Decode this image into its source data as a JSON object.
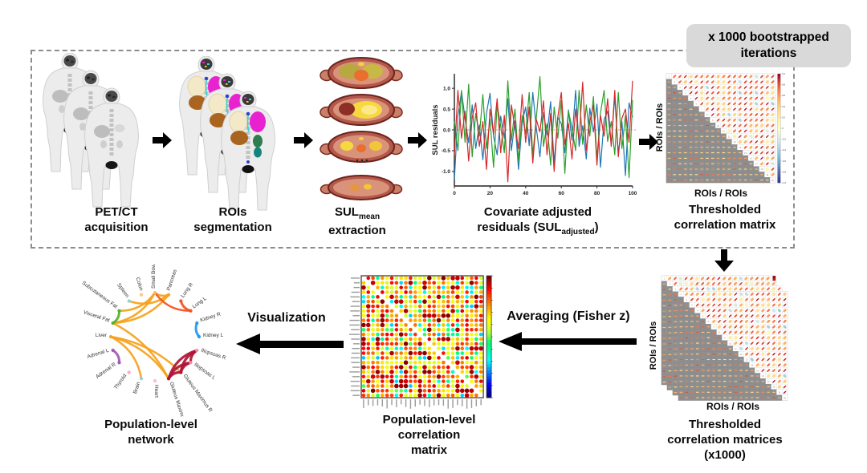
{
  "badge": {
    "text": "x 1000 bootstrapped iterations"
  },
  "steps": {
    "petct": {
      "line1": "PET/CT",
      "line2": "acquisition"
    },
    "rois": {
      "line1": "ROIs",
      "line2": "segmentation"
    },
    "sul": {
      "main": "SUL",
      "sub": "mean",
      "line2": "extraction"
    },
    "covariate": {
      "line1": "Covariate adjusted",
      "line2_pre": "residuals (SUL",
      "line2_sub": "adjusted",
      "line2_post": ")"
    },
    "thresholded": {
      "line1": "Thresholded",
      "line2": "correlation matrix"
    },
    "stack": {
      "line1": "Thresholded",
      "line2": "correlation matrices",
      "line3": "(x1000)"
    },
    "pop_matrix": {
      "line1": "Population-level",
      "line2": "correlation",
      "line3": "matrix"
    },
    "pop_network": {
      "line1": "Population-level",
      "line2": "network"
    }
  },
  "arrows": {
    "averaging": "Averaging (Fisher z)",
    "visualization": "Visualization"
  },
  "labels": {
    "rois_axis": "ROIs / ROIs",
    "ellipsis": "..."
  },
  "colors": {
    "badge_bg": "#d9d9d9",
    "arrow": "#000000",
    "dash_border": "#8c8c8c",
    "series_red": "#d62728",
    "series_green": "#2ca02c",
    "series_blue": "#1f77b4",
    "matrix_gray": "#8f8f8f",
    "network_orange": "#f5a21b",
    "network_maroon": "#b01335",
    "network_green": "#52b02a",
    "network_purple": "#9b59b6",
    "network_blue": "#2196f3",
    "network_orangered": "#f4511e"
  },
  "chart_data": [
    {
      "type": "line",
      "name": "covariate_adjusted_residuals",
      "ylabel": "SUL residuals",
      "xlim": [
        0,
        100
      ],
      "ylim": [
        -1.35,
        1.35
      ],
      "xticks": [
        0,
        20,
        40,
        60,
        80,
        100
      ],
      "ytick_labels": [
        "1.0",
        "0.5",
        "0.0",
        "-0.5",
        "-1.0"
      ],
      "ytick_values": [
        1.0,
        0.5,
        0.0,
        -0.5,
        -1.0
      ],
      "zero_line": true,
      "x_step": 2,
      "series": [
        {
          "name": "subject_blue",
          "color": "#1f77b4",
          "values": [
            -1.2,
            0.35,
            0.92,
            0.28,
            -0.31,
            0.6,
            -0.45,
            0.12,
            -0.72,
            0.4,
            0.88,
            -0.15,
            -0.6,
            0.33,
            -0.2,
            0.75,
            -0.5,
            0.22,
            -0.95,
            0.18,
            0.55,
            -0.38,
            0.9,
            0.05,
            -0.65,
            0.42,
            -0.12,
            0.68,
            -0.8,
            0.3,
            0.15,
            -0.55,
            0.48,
            -0.25,
            0.95,
            -0.4,
            0.1,
            -0.7,
            0.52,
            -0.05,
            0.62,
            -0.9,
            0.25,
            0.45,
            -0.35,
            0.8,
            -0.58,
            0.2,
            -1.1,
            0.65,
            0.3
          ]
        },
        {
          "name": "subject_green",
          "color": "#2ca02c",
          "values": [
            0.2,
            -0.5,
            0.95,
            -0.3,
            1.1,
            -0.65,
            0.4,
            -0.15,
            0.85,
            -0.45,
            0.25,
            -0.9,
            0.6,
            0.1,
            -0.55,
            1.18,
            -0.25,
            0.5,
            -0.75,
            0.35,
            -0.1,
            0.9,
            -0.6,
            0.3,
            1.28,
            -0.4,
            0.15,
            -0.85,
            0.55,
            -0.2,
            0.7,
            -1.05,
            0.45,
            0.05,
            -0.5,
            0.95,
            -0.35,
            0.6,
            -0.15,
            0.8,
            -0.7,
            0.4,
            0.95,
            -0.28,
            0.2,
            -0.6,
            0.9,
            -0.45,
            0.35,
            -1.15,
            0.72
          ]
        },
        {
          "name": "subject_red",
          "color": "#d62728",
          "values": [
            -0.6,
            0.95,
            -0.2,
            0.45,
            -0.75,
            0.3,
            0.65,
            -0.4,
            0.2,
            -0.95,
            0.5,
            -0.1,
            0.75,
            -0.55,
            0.35,
            -1.25,
            0.6,
            0.05,
            -0.45,
            0.85,
            -0.3,
            0.55,
            -0.8,
            0.25,
            -0.05,
            0.7,
            -0.6,
            0.4,
            -1.0,
            0.3,
            0.9,
            -0.35,
            0.15,
            -0.7,
            0.5,
            -0.25,
            1.15,
            -0.5,
            0.2,
            0.6,
            -0.85,
            0.35,
            -0.15,
            0.75,
            -0.4,
            0.95,
            -0.65,
            0.28,
            0.5,
            -0.3,
            1.18
          ]
        }
      ]
    },
    {
      "type": "heatmap",
      "name": "thresholded_correlation_matrix",
      "size": 20,
      "xlabel": "ROIs / ROIs",
      "ylabel": "ROIs / ROIs",
      "upper_triangle": "correlation ellipse glyphs",
      "lower_triangle": "correlation values on gray",
      "diagonal": "1..20",
      "cell_values_illegible": true,
      "colorbar_ticks": [
        "1.0",
        "0.8",
        "0.6",
        "0.4",
        "0.2",
        "0",
        "-0.2",
        "-0.4",
        "-0.6",
        "-0.8",
        "-1.0"
      ],
      "stack_copies_visible": 4,
      "seed": 11
    },
    {
      "type": "heatmap",
      "name": "population_level_correlation_matrix",
      "size": 26,
      "colormap": "jet",
      "dot_style": "filled circles",
      "row_labels_illegible": true,
      "col_labels_illegible": true,
      "colorbar_range": [
        1,
        -1
      ],
      "seed": 5
    },
    {
      "type": "network",
      "name": "population_level_network",
      "layout": "circular",
      "nodes": [
        {
          "label": "Small Bowel",
          "dot": "#f8c471"
        },
        {
          "label": "Pancreas",
          "dot": "#f5a21b"
        },
        {
          "label": "Lung R",
          "dot": "#f4511e"
        },
        {
          "label": "Lung L",
          "dot": "#f4511e"
        },
        {
          "label": "Kidney R",
          "dot": "#2196f3"
        },
        {
          "label": "Kidney L",
          "dot": "#2196f3"
        },
        {
          "label": "Iliopsoas R",
          "dot": "#f2a6b8"
        },
        {
          "label": "Iliopsoas L",
          "dot": "#f2a6b8"
        },
        {
          "label": "Gluteus Maximus R",
          "dot": "#b01335"
        },
        {
          "label": "Gluteus Maximus L",
          "dot": "#b01335"
        },
        {
          "label": "Heart",
          "dot": "#f7b6c2"
        },
        {
          "label": "Brain",
          "dot": "#7fd8e8"
        },
        {
          "label": "Thyroid",
          "dot": "#f2a6b8"
        },
        {
          "label": "Adrenal R",
          "dot": "#9b59b6"
        },
        {
          "label": "Adrenal L",
          "dot": "#9b59b6"
        },
        {
          "label": "Liver",
          "dot": "#f5a21b"
        },
        {
          "label": "Visceral Fat",
          "dot": "#52b02a"
        },
        {
          "label": "Subcutaneous Fat",
          "dot": "#52b02a"
        },
        {
          "label": "Spleen",
          "dot": "#7fd8e8"
        },
        {
          "label": "Colon",
          "dot": "#f8c471"
        }
      ],
      "edges": [
        {
          "a": 15,
          "b": 11,
          "color": "#f5a21b",
          "w": 2.6
        },
        {
          "a": 15,
          "b": 9,
          "color": "#f5a21b",
          "w": 2.6
        },
        {
          "a": 15,
          "b": 8,
          "color": "#f5a21b",
          "w": 2.6
        },
        {
          "a": 16,
          "b": 0,
          "color": "#f5a21b",
          "w": 2.6
        },
        {
          "a": 16,
          "b": 1,
          "color": "#f5a21b",
          "w": 2.6
        },
        {
          "a": 17,
          "b": 0,
          "color": "#f5a21b",
          "w": 2.6
        },
        {
          "a": 18,
          "b": 1,
          "color": "#f5a21b",
          "w": 2.6
        },
        {
          "a": 0,
          "b": 1,
          "color": "#f5a21b",
          "w": 2.6
        },
        {
          "a": 16,
          "b": 9,
          "color": "#f5a21b",
          "w": 2.6
        },
        {
          "a": 2,
          "b": 3,
          "color": "#f4511e",
          "w": 3
        },
        {
          "a": 3,
          "b": 0,
          "color": "#f4511e",
          "w": 2.4
        },
        {
          "a": 6,
          "b": 7,
          "color": "#b01335",
          "w": 3.2
        },
        {
          "a": 6,
          "b": 8,
          "color": "#b01335",
          "w": 3.2
        },
        {
          "a": 6,
          "b": 9,
          "color": "#b01335",
          "w": 3.2
        },
        {
          "a": 7,
          "b": 8,
          "color": "#b01335",
          "w": 3.2
        },
        {
          "a": 7,
          "b": 9,
          "color": "#b01335",
          "w": 3.2
        },
        {
          "a": 8,
          "b": 9,
          "color": "#b01335",
          "w": 3.2
        },
        {
          "a": 16,
          "b": 17,
          "color": "#52b02a",
          "w": 3
        },
        {
          "a": 13,
          "b": 14,
          "color": "#9b59b6",
          "w": 3
        },
        {
          "a": 4,
          "b": 5,
          "color": "#2196f3",
          "w": 3
        }
      ]
    }
  ]
}
